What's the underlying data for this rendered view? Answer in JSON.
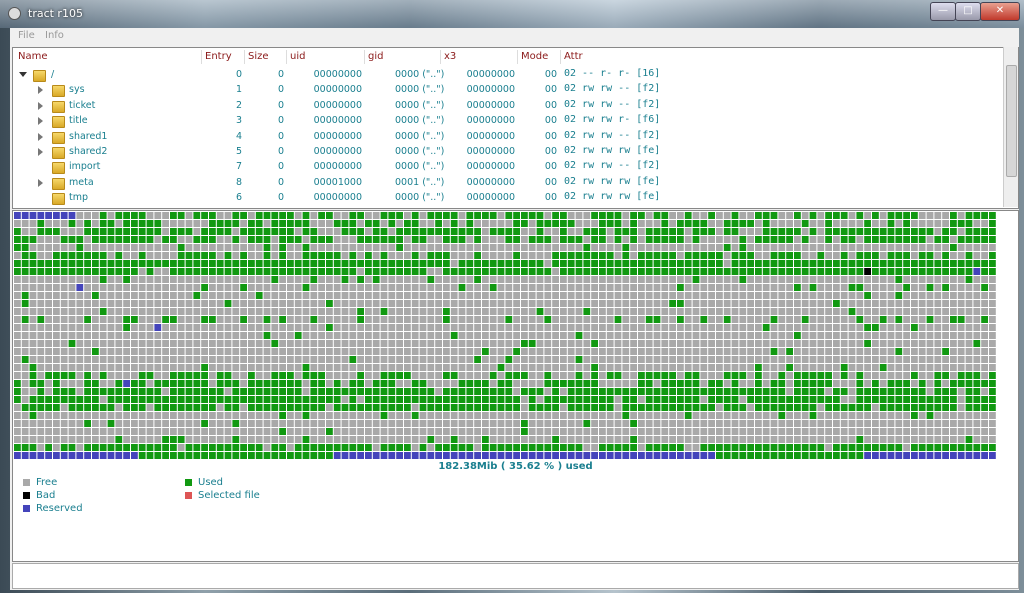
{
  "window": {
    "title": "tract  r105"
  },
  "menu": [
    "File",
    "Info"
  ],
  "table": {
    "columns": [
      "Name",
      "Entry",
      "Size",
      "uid",
      "gid",
      "x3",
      "Mode",
      "Attr"
    ],
    "rows": [
      [
        "/",
        "0",
        "0",
        "00000000",
        "0000 (\"..\")",
        "00000000",
        "00",
        "02 -- r- r- [16]"
      ],
      [
        "sys",
        "1",
        "0",
        "00000000",
        "0000 (\"..\")",
        "00000000",
        "00",
        "02 rw rw -- [f2]"
      ],
      [
        "ticket",
        "2",
        "0",
        "00000000",
        "0000 (\"..\")",
        "00000000",
        "00",
        "02 rw rw -- [f2]"
      ],
      [
        "title",
        "3",
        "0",
        "00000000",
        "0000 (\"..\")",
        "00000000",
        "00",
        "02 rw rw r- [f6]"
      ],
      [
        "shared1",
        "4",
        "0",
        "00000000",
        "0000 (\"..\")",
        "00000000",
        "00",
        "02 rw rw -- [f2]"
      ],
      [
        "shared2",
        "5",
        "0",
        "00000000",
        "0000 (\"..\")",
        "00000000",
        "00",
        "02 rw rw rw [fe]"
      ],
      [
        "import",
        "7",
        "0",
        "00000000",
        "0000 (\"..\")",
        "00000000",
        "00",
        "02 rw rw -- [f2]"
      ],
      [
        "meta",
        "8",
        "0",
        "00001000",
        "0001 (\"..\")",
        "00000000",
        "00",
        "02 rw rw rw [fe]"
      ],
      [
        "tmp",
        "6",
        "0",
        "00000000",
        "0000 (\"..\")",
        "00000000",
        "00",
        "02 rw rw rw [fe]"
      ]
    ]
  },
  "usage": "182.38Mib ( 35.62 % ) used",
  "legend": [
    "Free",
    "Used",
    "Bad",
    "Selected file",
    "Reserved"
  ]
}
